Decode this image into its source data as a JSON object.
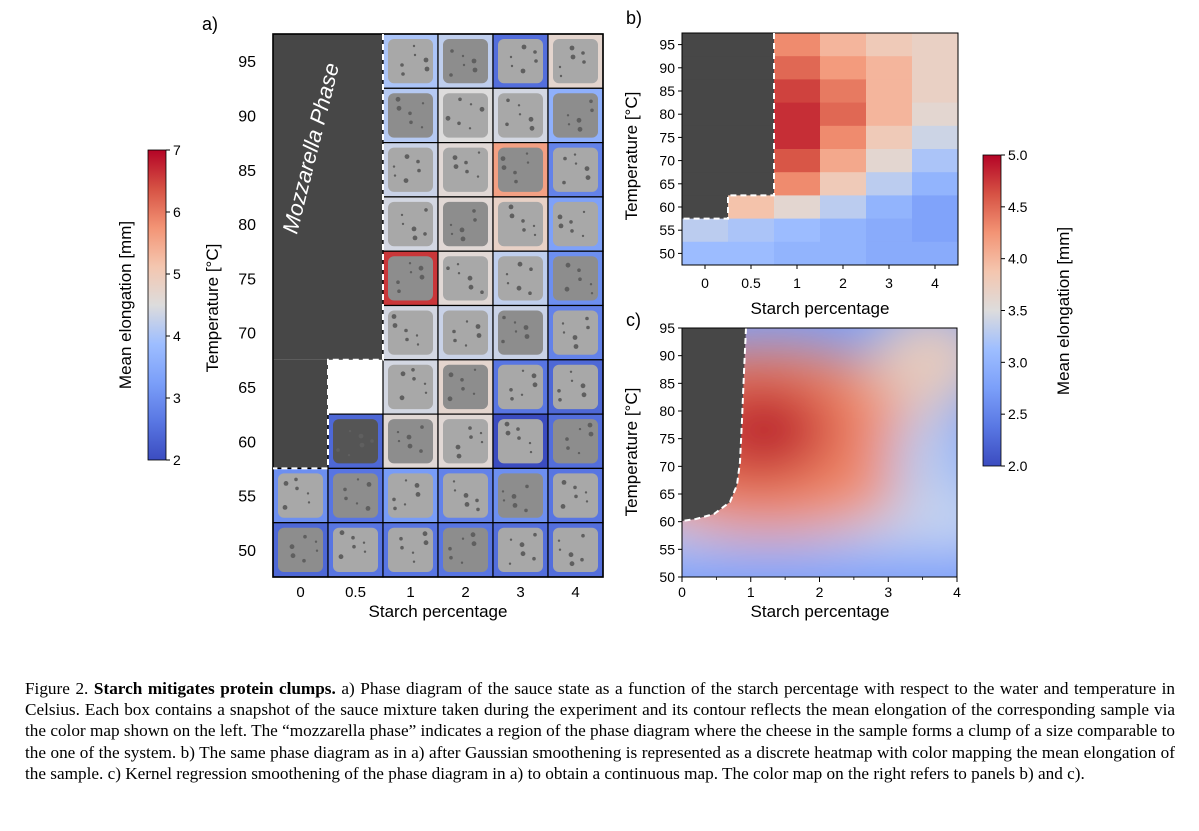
{
  "figure": {
    "panel_labels": {
      "a": "a)",
      "b": "b)",
      "c": "c)"
    },
    "mozzarella_label": "Mozzarella Phase"
  },
  "colorbar_left": {
    "label": "Mean elongation [mm]",
    "ticks": [
      "7",
      "6",
      "5",
      "4",
      "3",
      "2"
    ],
    "min": 2,
    "max": 7
  },
  "colorbar_right": {
    "label": "Mean elongation [mm]",
    "ticks": [
      "5.0",
      "4.5",
      "4.0",
      "3.5",
      "3.0",
      "2.5",
      "2.0"
    ],
    "min": 2.0,
    "max": 5.0
  },
  "chart_data": [
    {
      "panel": "a",
      "type": "heatmap",
      "xlabel": "Starch percentage",
      "ylabel": "Temperature [°C]",
      "x_ticks": [
        "0",
        "0.5",
        "1",
        "2",
        "3",
        "4"
      ],
      "y_ticks": [
        "95",
        "90",
        "85",
        "80",
        "75",
        "70",
        "65",
        "60",
        "55",
        "50"
      ],
      "note": "each cell contains a sample snapshot; border color encodes mean elongation [mm]; null = mozzarella phase",
      "rows": [
        {
          "temp": 95,
          "values": [
            null,
            null,
            4.0,
            4.2,
            2.5,
            4.7
          ]
        },
        {
          "temp": 90,
          "values": [
            null,
            null,
            4.1,
            4.5,
            4.4,
            3.6
          ]
        },
        {
          "temp": 85,
          "values": [
            null,
            null,
            4.3,
            4.6,
            5.6,
            2.8
          ]
        },
        {
          "temp": 80,
          "values": [
            null,
            null,
            4.4,
            4.6,
            4.8,
            3.3
          ]
        },
        {
          "temp": 75,
          "values": [
            null,
            null,
            6.6,
            4.6,
            4.2,
            3.0
          ]
        },
        {
          "temp": 70,
          "values": [
            null,
            null,
            4.4,
            4.3,
            4.3,
            2.8
          ]
        },
        {
          "temp": 65,
          "values": [
            null,
            null,
            4.4,
            4.7,
            2.6,
            2.4
          ]
        },
        {
          "temp": 60,
          "values": [
            null,
            2.4,
            4.6,
            4.6,
            2.0,
            2.5
          ]
        },
        {
          "temp": 55,
          "values": [
            3.0,
            2.6,
            3.2,
            2.8,
            3.0,
            2.6
          ]
        },
        {
          "temp": 50,
          "values": [
            2.4,
            2.6,
            2.6,
            2.6,
            2.5,
            2.5
          ]
        }
      ]
    },
    {
      "panel": "b",
      "type": "heatmap",
      "xlabel": "Starch percentage",
      "ylabel": "Temperature [°C]",
      "x_ticks": [
        "0",
        "0.5",
        "1",
        "2",
        "3",
        "4"
      ],
      "y_ticks": [
        "95",
        "90",
        "85",
        "80",
        "75",
        "70",
        "65",
        "60",
        "55",
        "50"
      ],
      "rows": [
        {
          "temp": 95,
          "values": [
            null,
            null,
            4.3,
            4.0,
            3.8,
            3.7
          ]
        },
        {
          "temp": 90,
          "values": [
            null,
            null,
            4.5,
            4.2,
            4.0,
            3.7
          ]
        },
        {
          "temp": 85,
          "values": [
            null,
            null,
            4.7,
            4.4,
            4.0,
            3.7
          ]
        },
        {
          "temp": 80,
          "values": [
            null,
            null,
            4.8,
            4.5,
            4.0,
            3.6
          ]
        },
        {
          "temp": 75,
          "values": [
            null,
            null,
            4.8,
            4.3,
            3.8,
            3.4
          ]
        },
        {
          "temp": 70,
          "values": [
            null,
            null,
            4.6,
            4.1,
            3.6,
            3.2
          ]
        },
        {
          "temp": 65,
          "values": [
            null,
            null,
            4.3,
            3.8,
            3.3,
            3.0
          ]
        },
        {
          "temp": 60,
          "values": [
            null,
            3.9,
            3.6,
            3.3,
            3.0,
            2.8
          ]
        },
        {
          "temp": 55,
          "values": [
            3.3,
            3.2,
            3.1,
            3.0,
            2.9,
            2.8
          ]
        },
        {
          "temp": 50,
          "values": [
            3.1,
            3.1,
            3.0,
            3.0,
            2.9,
            2.9
          ]
        }
      ]
    },
    {
      "panel": "c",
      "type": "heatmap",
      "xlabel": "Starch percentage",
      "ylabel": "Temperature [°C]",
      "x_ticks": [
        "0",
        "1",
        "2",
        "3",
        "4"
      ],
      "y_ticks": [
        "95",
        "90",
        "85",
        "80",
        "75",
        "70",
        "65",
        "60",
        "55",
        "50"
      ],
      "xlim": [
        0,
        4
      ],
      "ylim": [
        50,
        95
      ],
      "note": "continuous kernel-regression map; peak near 1% starch, 77°C"
    }
  ],
  "caption": {
    "prefix": "Figure 2. ",
    "bold": "Starch mitigates protein clumps.",
    "text": " a) Phase diagram of the sauce state as a function of the starch percentage with respect to the water and temperature in Celsius. Each box contains a snapshot of the sauce mixture taken during the experiment and its contour reflects the mean elongation of the corresponding sample via the color map shown on the left. The “mozzarella phase” indicates a region of the phase diagram where the cheese in the sample forms a clump of a size comparable to the one of the system. b) The same phase diagram as in a) after Gaussian smoothening is represented as a discrete heatmap with color mapping the mean elongation of the sample. c) Kernel regression smoothening of the phase diagram in a) to obtain a continuous map. The color map on the right refers to panels b) and c)."
  }
}
